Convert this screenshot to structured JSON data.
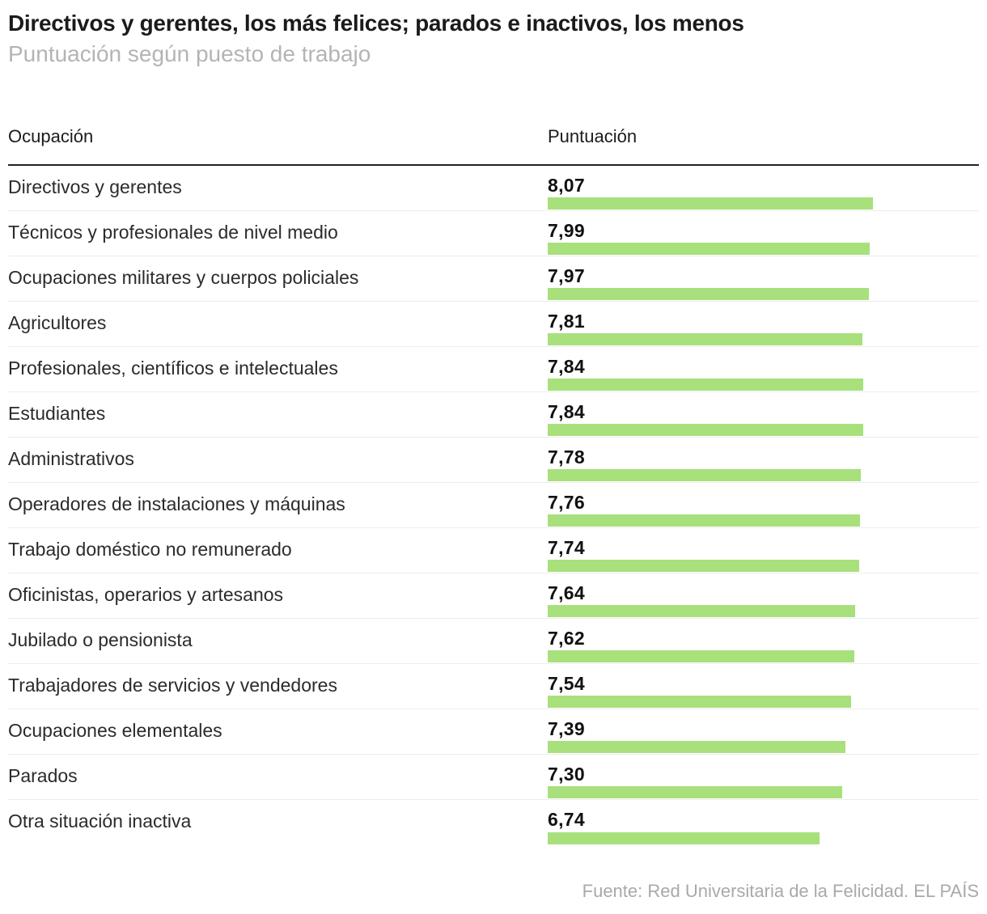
{
  "header": {
    "title": "Directivos y gerentes, los más felices; parados e inactivos, los menos",
    "subtitle": "Puntuación según puesto de trabajo"
  },
  "table": {
    "col_occupation": "Ocupación",
    "col_score": "Puntuación",
    "rows": [
      {
        "label": "Directivos y gerentes",
        "score": "8,07",
        "value": 8.07
      },
      {
        "label": "Técnicos y profesionales de nivel medio",
        "score": "7,99",
        "value": 7.99
      },
      {
        "label": "Ocupaciones militares y cuerpos policiales",
        "score": "7,97",
        "value": 7.97
      },
      {
        "label": "Agricultores",
        "score": "7,81",
        "value": 7.81
      },
      {
        "label": "Profesionales, científicos e intelectuales",
        "score": "7,84",
        "value": 7.84
      },
      {
        "label": "Estudiantes",
        "score": "7,84",
        "value": 7.84
      },
      {
        "label": "Administrativos",
        "score": "7,78",
        "value": 7.78
      },
      {
        "label": "Operadores de instalaciones y máquinas",
        "score": "7,76",
        "value": 7.76
      },
      {
        "label": "Trabajo doméstico no remunerado",
        "score": "7,74",
        "value": 7.74
      },
      {
        "label": "Oficinistas, operarios y artesanos",
        "score": "7,64",
        "value": 7.64
      },
      {
        "label": "Jubilado o pensionista",
        "score": "7,62",
        "value": 7.62
      },
      {
        "label": "Trabajadores de servicios y vendedores",
        "score": "7,54",
        "value": 7.54
      },
      {
        "label": "Ocupaciones elementales",
        "score": "7,39",
        "value": 7.39
      },
      {
        "label": "Parados",
        "score": "7,30",
        "value": 7.3
      },
      {
        "label": "Otra situación inactiva",
        "score": "6,74",
        "value": 6.74
      }
    ]
  },
  "footer": {
    "source": "Fuente: Red Universitaria de la Felicidad. EL PAÍS"
  },
  "colors": {
    "bar_green": "#a8e07c",
    "separator": "#ededed",
    "header_rule": "#222222",
    "title_text": "#1b1b1b",
    "muted_text": "#b4b4b4",
    "source_text": "#a9a9a9"
  },
  "chart_data": {
    "type": "bar",
    "orientation": "horizontal",
    "title": "Directivos y gerentes, los más felices; parados e inactivos, los menos",
    "subtitle": "Puntuación según puesto de trabajo",
    "xlabel": "Puntuación",
    "ylabel": "Ocupación",
    "categories": [
      "Directivos y gerentes",
      "Técnicos y profesionales de nivel medio",
      "Ocupaciones militares y cuerpos policiales",
      "Agricultores",
      "Profesionales, científicos e intelectuales",
      "Estudiantes",
      "Administrativos",
      "Operadores de instalaciones y máquinas",
      "Trabajo doméstico no remunerado",
      "Oficinistas, operarios y artesanos",
      "Jubilado o pensionista",
      "Trabajadores de servicios y vendedores",
      "Ocupaciones elementales",
      "Parados",
      "Otra situación inactiva"
    ],
    "values": [
      8.07,
      7.99,
      7.97,
      7.81,
      7.84,
      7.84,
      7.78,
      7.76,
      7.74,
      7.64,
      7.62,
      7.54,
      7.39,
      7.3,
      6.74
    ],
    "value_labels": [
      "8,07",
      "7,99",
      "7,97",
      "7,81",
      "7,84",
      "7,84",
      "7,78",
      "7,76",
      "7,74",
      "7,64",
      "7,62",
      "7,54",
      "7,39",
      "7,30",
      "6,74"
    ],
    "xlim": [
      0,
      8.07
    ],
    "grid": false,
    "legend": false,
    "bar_color": "#a8e07c",
    "source": "Fuente: Red Universitaria de la Felicidad. EL PAÍS"
  }
}
